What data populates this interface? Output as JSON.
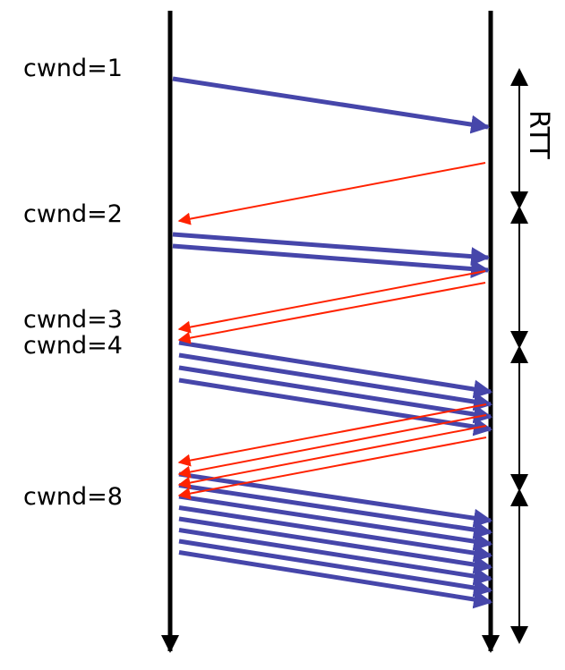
{
  "labels": {
    "cwnd1": "cwnd=1",
    "cwnd2": "cwnd=2",
    "cwnd3": "cwnd=3",
    "cwnd4": "cwnd=4",
    "cwnd8": "cwnd=8",
    "rtt": "RTT"
  },
  "colors": {
    "segment": "#4646aa",
    "ack": "#ff2200",
    "timeline": "#000000"
  }
}
